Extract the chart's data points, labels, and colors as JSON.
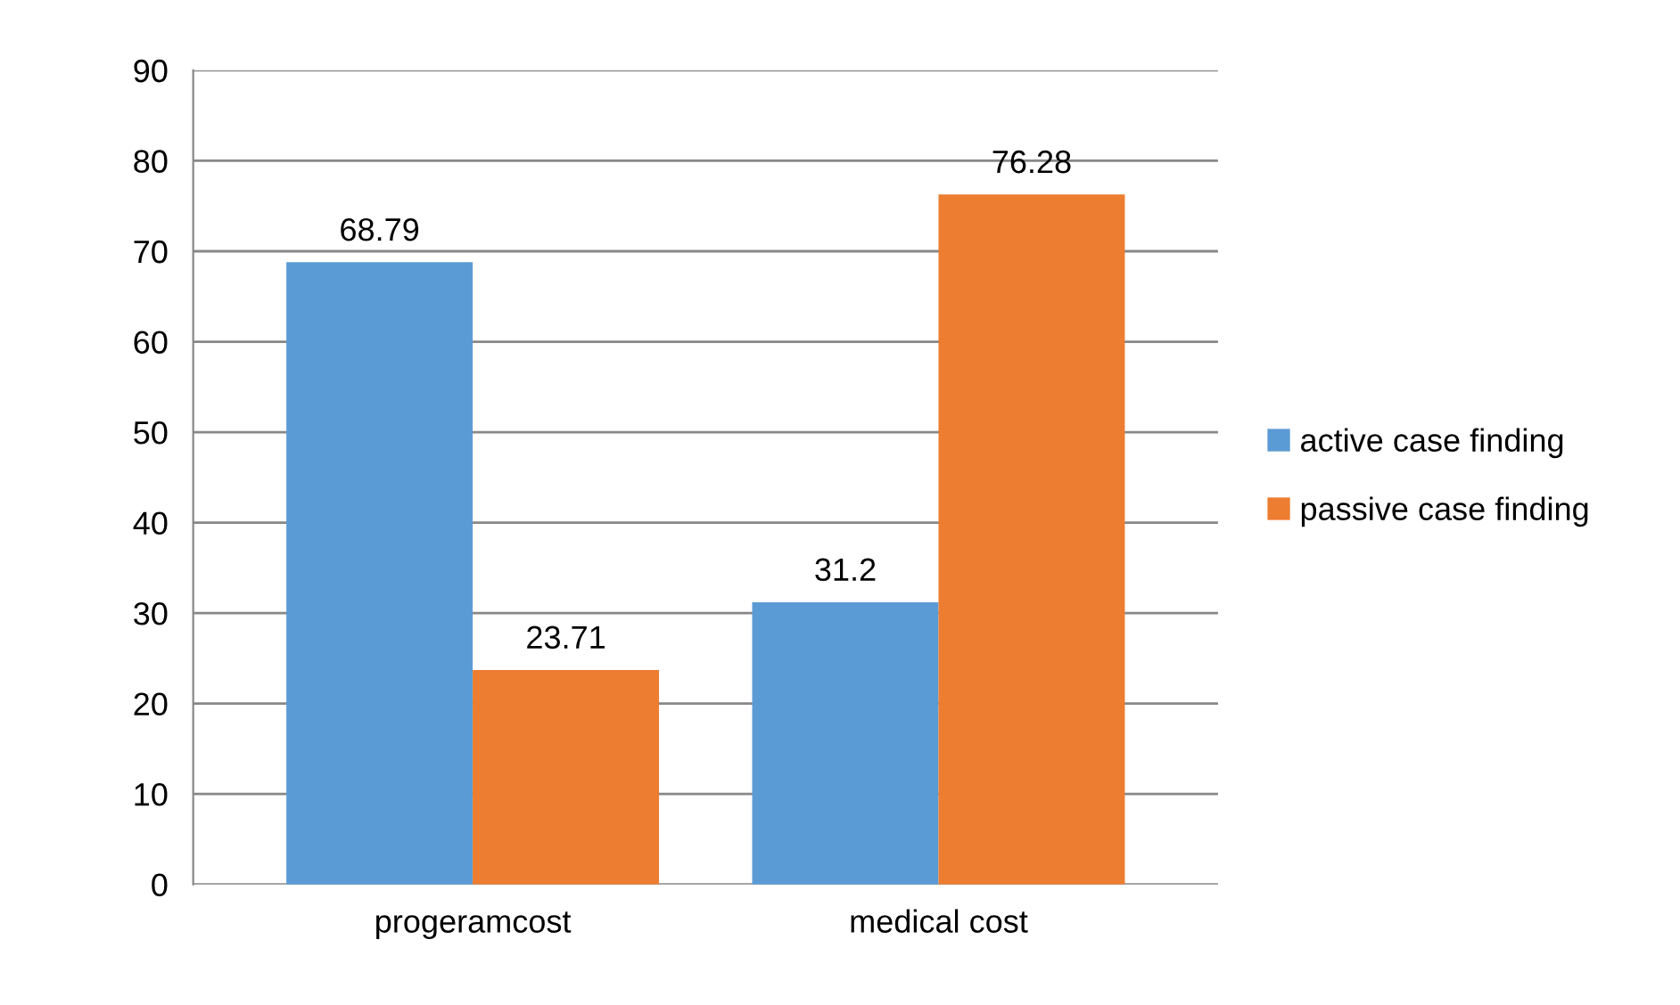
{
  "chart_data": {
    "type": "bar",
    "categories": [
      "progeramcost",
      "medical cost"
    ],
    "series": [
      {
        "name": "active case finding",
        "color": "#5b9bd5",
        "values": [
          68.79,
          31.2
        ]
      },
      {
        "name": "passive case finding",
        "color": "#ed7d31",
        "values": [
          23.71,
          76.28
        ]
      }
    ],
    "ylim": [
      0,
      90
    ],
    "yticks": [
      0,
      10,
      20,
      30,
      40,
      50,
      60,
      70,
      80,
      90
    ],
    "grid": "y",
    "legend": "right",
    "data_labels": true
  }
}
